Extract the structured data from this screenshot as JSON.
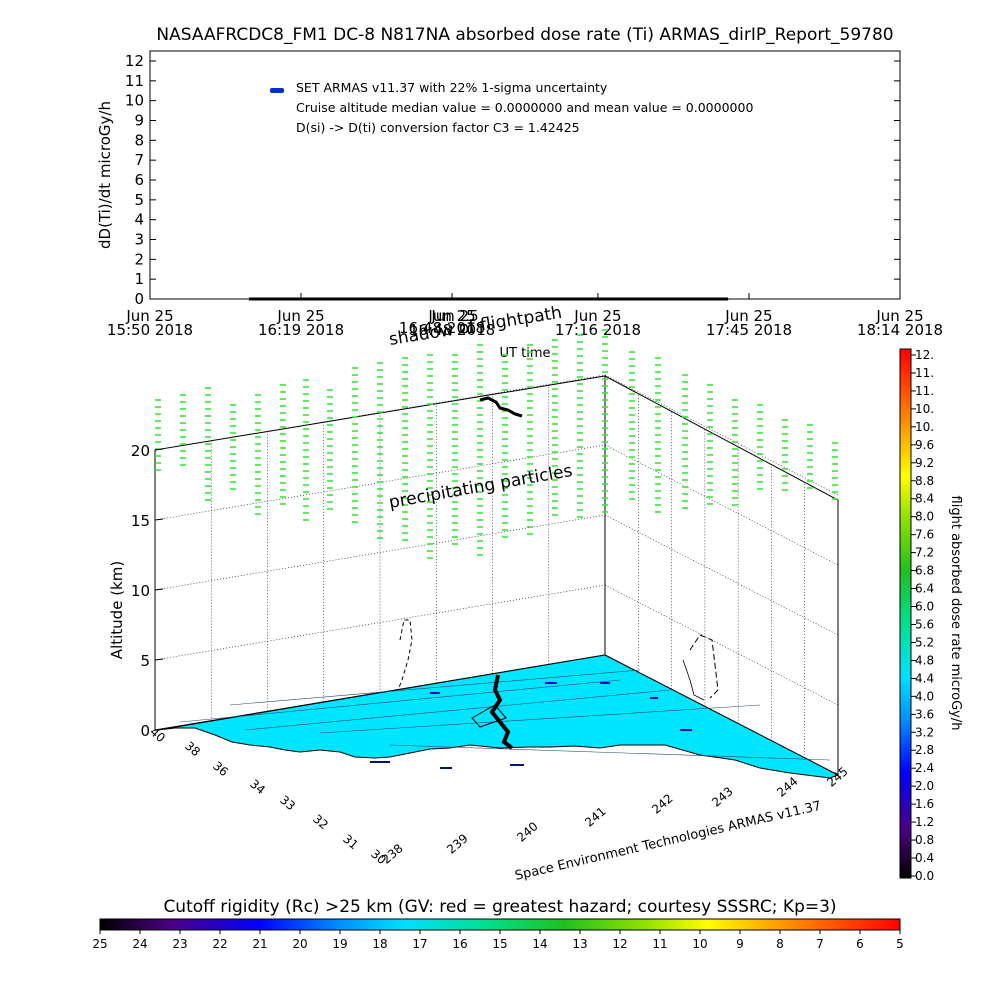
{
  "chart_data": [
    {
      "type": "line",
      "title": "NASAAFRCDC8_FM1 DC-8   N817NA absorbed dose rate (Ti) ARMAS_dirIP_Report_59780",
      "ylabel": "dD(Ti)/dt microGy/h",
      "xlabel": "UT time",
      "ylim": [
        0,
        12
      ],
      "y_ticks": [
        "0",
        "1",
        "2",
        "3",
        "4",
        "5",
        "6",
        "7",
        "8",
        "9",
        "10",
        "11",
        "12"
      ],
      "x_ticks": [
        {
          "date": "Jun 25",
          "time": "15:50 2018"
        },
        {
          "date": "Jun 25",
          "time": "16:19 2018"
        },
        {
          "date": "Jun 25",
          "time": "16:48 2018"
        },
        {
          "date": "Jun 25",
          "time": "17:16 2018"
        },
        {
          "date": "Jun 25",
          "time": "17:45 2018"
        },
        {
          "date": "Jun 25",
          "time": "18:14 2018"
        }
      ],
      "x_minutes": [
        950,
        979,
        1008,
        1036,
        1065,
        1094
      ],
      "legend": {
        "placement": "top-left",
        "marker_color": "#0033cc",
        "lines": [
          "SET ARMAS v11.37 with 22% 1-sigma uncertainty",
          "Cruise altitude median value = 0.0000000 and mean value = 0.0000000",
          "D(si) -> D(ti) conversion factor C3 = 1.42425"
        ]
      },
      "series": [
        {
          "x_start_min": 969,
          "x_end_min": 1061,
          "value": 0.0
        }
      ]
    },
    {
      "type": "scatter",
      "zlabel": "Altitude (km)",
      "z_ticks": [
        "0",
        "5",
        "10",
        "15",
        "20"
      ],
      "zlim": [
        0,
        22
      ],
      "lat_ticks": [
        "30",
        "31",
        "32",
        "33",
        "34",
        "36",
        "38",
        "40"
      ],
      "lon_ticks": [
        "238",
        "239",
        "240",
        "241",
        "242",
        "243",
        "244",
        "245"
      ],
      "annotations": {
        "shadow": "shadow of flightpath",
        "particles": "precipitating particles",
        "credit": "Space Environment Technologies ARMAS v11.37"
      },
      "overlay_labels": {
        "date": "Jun 25",
        "time": "16:48 2018"
      },
      "colors": {
        "ground": "#00e5ff",
        "particles": "#39e639",
        "path": "#000000"
      }
    },
    {
      "type": "heatmap",
      "colorbar_right": {
        "label": "flight absorbed dose rate microGy/h",
        "ticks": [
          "12.",
          "11.",
          "11.",
          "10.",
          "10.",
          "9.6",
          "9.2",
          "8.8",
          "8.4",
          "8.0",
          "7.6",
          "7.2",
          "6.8",
          "6.4",
          "6.0",
          "5.6",
          "5.2",
          "4.8",
          "4.4",
          "4.0",
          "3.6",
          "3.2",
          "2.8",
          "2.4",
          "2.0",
          "1.6",
          "1.2",
          "0.8",
          "0.4",
          "0.0"
        ]
      },
      "colorbar_bottom": {
        "label": "Cutoff rigidity (Rc) >25 km (GV: red = greatest hazard; courtesy SSSRC; Kp=3)",
        "ticks": [
          "25",
          "24",
          "23",
          "22",
          "21",
          "20",
          "19",
          "18",
          "17",
          "16",
          "15",
          "14",
          "13",
          "12",
          "11",
          "10",
          "9",
          "8",
          "7",
          "6",
          "5"
        ]
      }
    }
  ]
}
